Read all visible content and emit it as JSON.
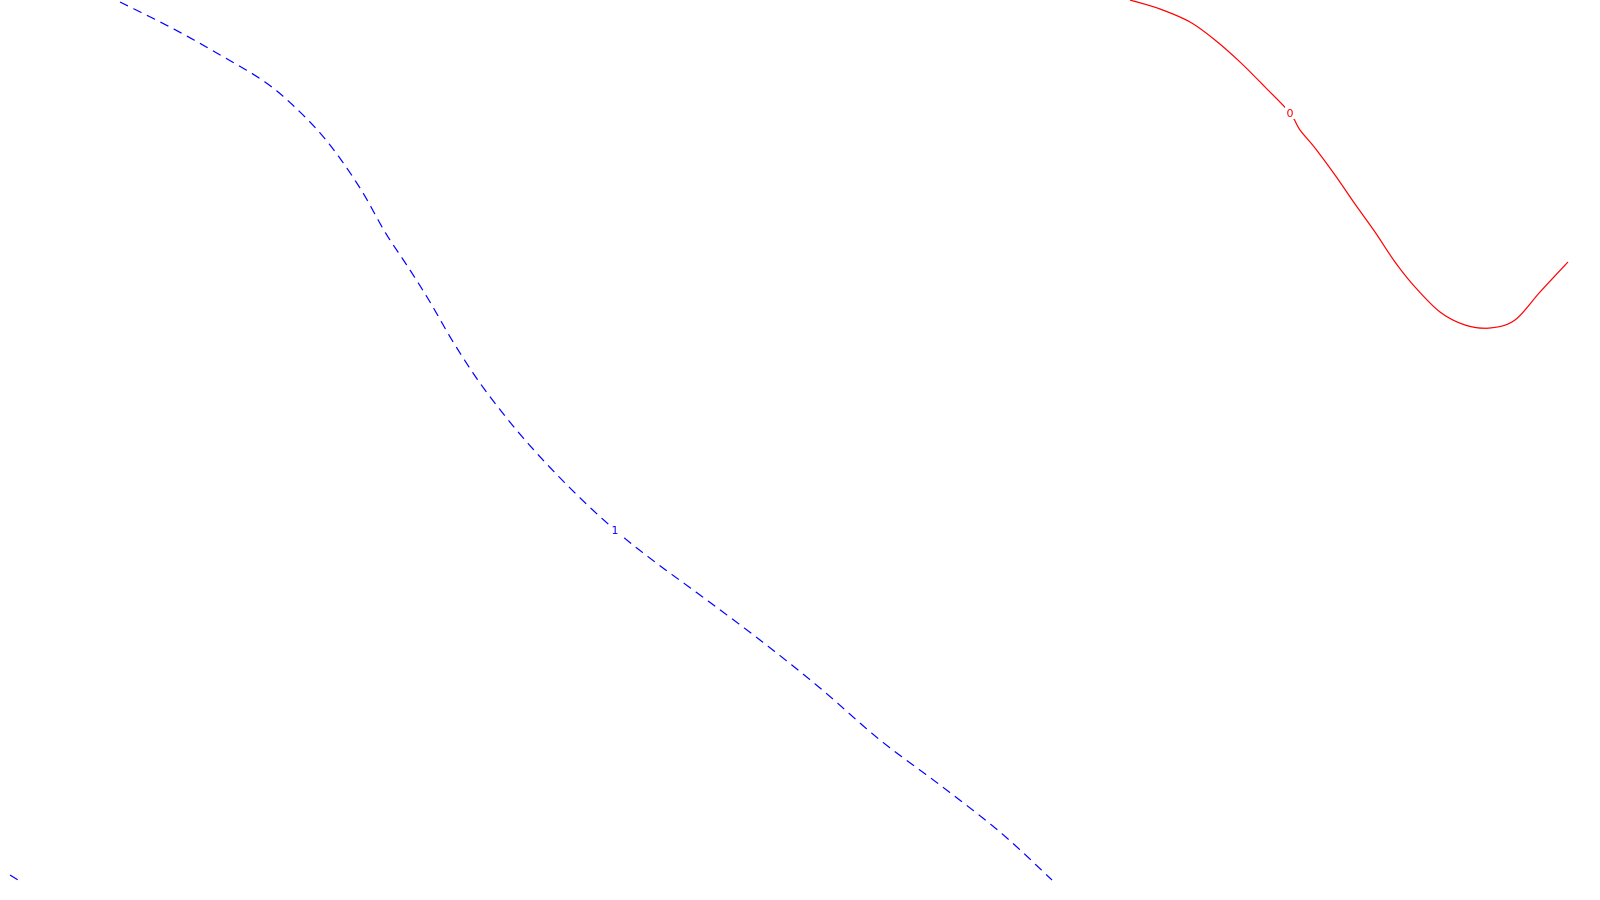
{
  "chart_data": {
    "type": "line",
    "grid": false,
    "series": [
      {
        "label": "0",
        "color": "#ff0000",
        "dash": "solid",
        "points": [
          [
            1130,
            0
          ],
          [
            1160,
            9
          ],
          [
            1190,
            22
          ],
          [
            1215,
            40
          ],
          [
            1240,
            62
          ],
          [
            1265,
            87
          ],
          [
            1290,
            113
          ],
          [
            1300,
            130
          ],
          [
            1315,
            148
          ],
          [
            1335,
            175
          ],
          [
            1355,
            204
          ],
          [
            1375,
            232
          ],
          [
            1395,
            262
          ],
          [
            1415,
            287
          ],
          [
            1440,
            312
          ],
          [
            1465,
            325
          ],
          [
            1490,
            328
          ],
          [
            1515,
            320
          ],
          [
            1540,
            292
          ],
          [
            1568,
            262
          ]
        ]
      },
      {
        "label": "1",
        "color": "#0000ff",
        "dash": "dashed",
        "points": [
          [
            120,
            2
          ],
          [
            170,
            27
          ],
          [
            215,
            52
          ],
          [
            265,
            82
          ],
          [
            300,
            112
          ],
          [
            330,
            145
          ],
          [
            360,
            188
          ],
          [
            385,
            232
          ],
          [
            410,
            270
          ],
          [
            430,
            302
          ],
          [
            455,
            345
          ],
          [
            485,
            390
          ],
          [
            525,
            440
          ],
          [
            570,
            488
          ],
          [
            615,
            530
          ],
          [
            655,
            562
          ],
          [
            700,
            595
          ],
          [
            760,
            640
          ],
          [
            820,
            688
          ],
          [
            880,
            740
          ],
          [
            940,
            785
          ],
          [
            1000,
            832
          ],
          [
            1052,
            880
          ]
        ]
      },
      {
        "label": "",
        "color": "#0000ff",
        "dash": "dashed",
        "points": [
          [
            10,
            875
          ],
          [
            18,
            880
          ]
        ]
      }
    ]
  }
}
